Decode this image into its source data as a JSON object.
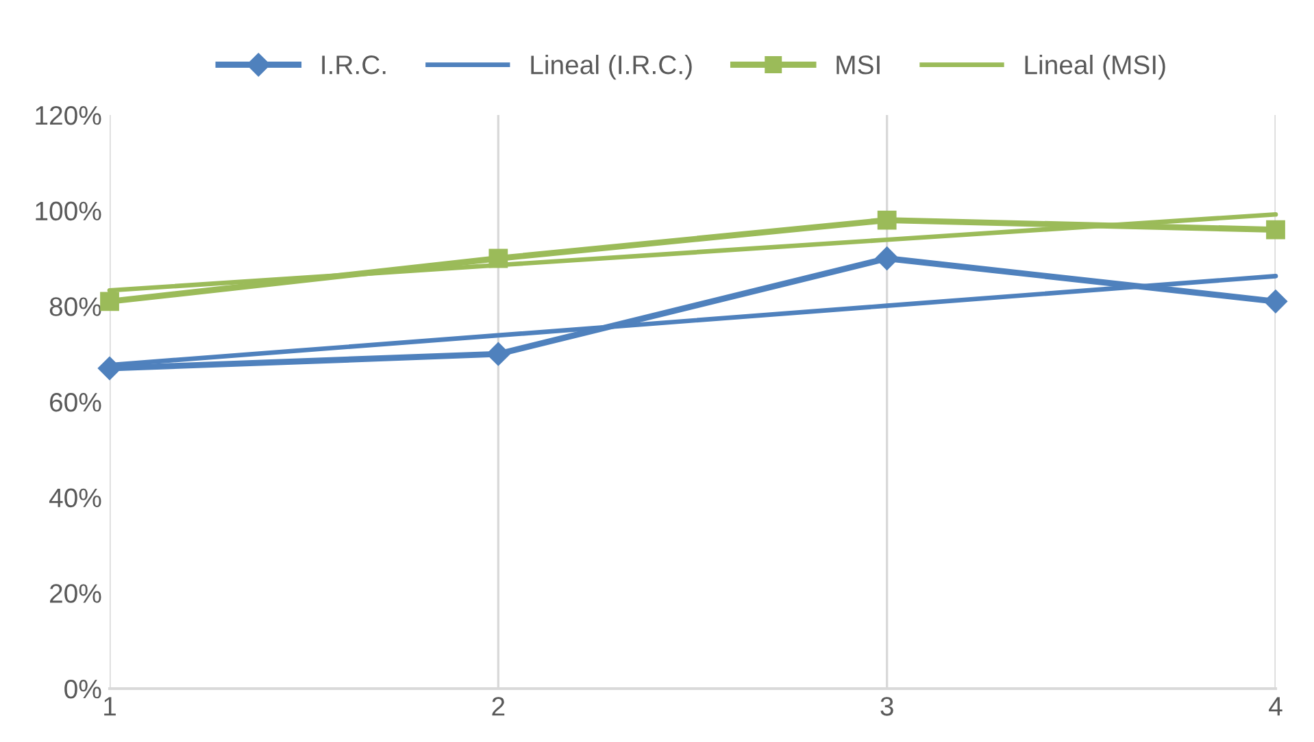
{
  "chart_data": {
    "type": "line",
    "x": [
      1,
      2,
      3,
      4
    ],
    "series": [
      {
        "name": "I.R.C.",
        "color": "#4f81bd",
        "marker": "diamond",
        "values": [
          67,
          70,
          90,
          81
        ]
      },
      {
        "name": "Lineal (I.R.C.)",
        "color": "#4f81bd",
        "marker": "none",
        "values": [
          67.7,
          73.9,
          80.1,
          86.3
        ]
      },
      {
        "name": "MSI",
        "color": "#9bbb59",
        "marker": "square",
        "values": [
          81,
          90,
          98,
          96
        ]
      },
      {
        "name": "Lineal (MSI)",
        "color": "#9bbb59",
        "marker": "none",
        "values": [
          83.3,
          88.6,
          93.9,
          99.2
        ]
      }
    ],
    "xlim": [
      1,
      4
    ],
    "xticks": [
      1,
      2,
      3,
      4
    ],
    "ylim": [
      0,
      120
    ],
    "yticks": [
      {
        "value": 0,
        "label": "0%"
      },
      {
        "value": 20,
        "label": "20%"
      },
      {
        "value": 40,
        "label": "40%"
      },
      {
        "value": 60,
        "label": "60%"
      },
      {
        "value": 80,
        "label": "80%"
      },
      {
        "value": 100,
        "label": "100%"
      },
      {
        "value": 120,
        "label": "120%"
      }
    ],
    "grid": "x",
    "legend": "top",
    "line_style": "solid"
  }
}
